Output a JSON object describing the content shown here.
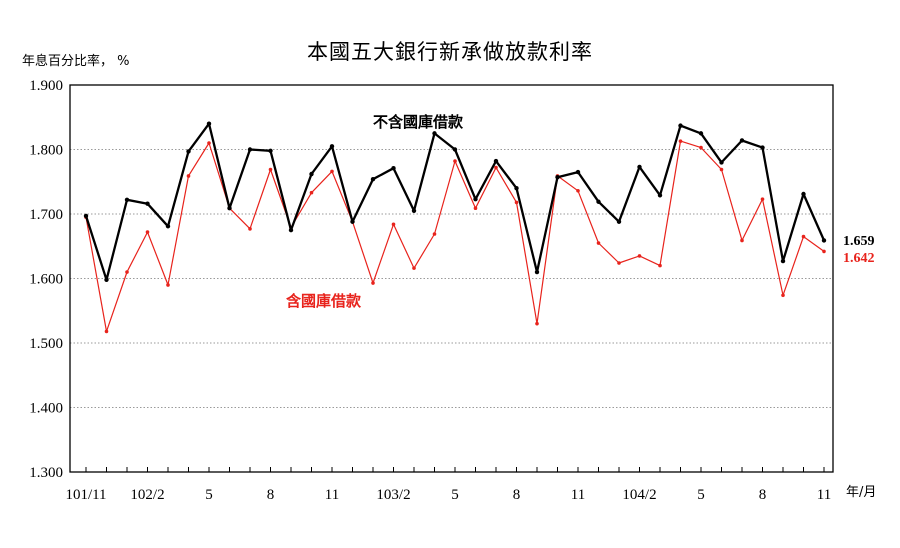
{
  "title": "本國五大銀行新承做放款利率",
  "y_unit_label": "年息百分比率， %",
  "x_unit_label": "年/月",
  "colors": {
    "series_excl": "#000000",
    "series_incl": "#e8231c",
    "grid": "#9a9a9a"
  },
  "chart_data": {
    "type": "line",
    "title": "本國五大銀行新承做放款利率",
    "ylabel": "年息百分比率， %",
    "xlabel": "年/月",
    "ylim": [
      1.3,
      1.9
    ],
    "yticks": [
      "1.300",
      "1.400",
      "1.500",
      "1.600",
      "1.700",
      "1.800",
      "1.900"
    ],
    "grid": "horizontal-dotted",
    "x": [
      "101/11",
      "101/12",
      "102/1",
      "102/2",
      "102/3",
      "102/4",
      "102/5",
      "102/6",
      "102/7",
      "102/8",
      "102/9",
      "102/10",
      "102/11",
      "102/12",
      "103/1",
      "103/2",
      "103/3",
      "103/4",
      "103/5",
      "103/6",
      "103/7",
      "103/8",
      "103/9",
      "103/10",
      "103/11",
      "103/12",
      "104/1",
      "104/2",
      "104/3",
      "104/4",
      "104/5",
      "104/6",
      "104/7",
      "104/8",
      "104/9",
      "104/10",
      "104/11"
    ],
    "xtick_labels": [
      {
        "index": 0,
        "label": "101/11"
      },
      {
        "index": 3,
        "label": "102/2"
      },
      {
        "index": 6,
        "label": "5"
      },
      {
        "index": 9,
        "label": "8"
      },
      {
        "index": 12,
        "label": "11"
      },
      {
        "index": 15,
        "label": "103/2"
      },
      {
        "index": 18,
        "label": "5"
      },
      {
        "index": 21,
        "label": "8"
      },
      {
        "index": 24,
        "label": "11"
      },
      {
        "index": 27,
        "label": "104/2"
      },
      {
        "index": 30,
        "label": "5"
      },
      {
        "index": 33,
        "label": "8"
      },
      {
        "index": 36,
        "label": "11"
      }
    ],
    "series": [
      {
        "name": "不含國庫借款",
        "color": "#000000",
        "end_label": "1.659",
        "values": [
          1.697,
          1.598,
          1.722,
          1.716,
          1.681,
          1.797,
          1.84,
          1.709,
          1.8,
          1.798,
          1.675,
          1.762,
          1.805,
          1.688,
          1.754,
          1.771,
          1.705,
          1.825,
          1.8,
          1.723,
          1.782,
          1.74,
          1.61,
          1.757,
          1.765,
          1.719,
          1.688,
          1.773,
          1.729,
          1.837,
          1.825,
          1.78,
          1.814,
          1.803,
          1.627,
          1.731,
          1.659
        ]
      },
      {
        "name": "含國庫借款",
        "color": "#e8231c",
        "end_label": "1.642",
        "values": [
          1.695,
          1.518,
          1.61,
          1.672,
          1.59,
          1.759,
          1.81,
          1.709,
          1.677,
          1.769,
          1.679,
          1.733,
          1.766,
          1.688,
          1.593,
          1.684,
          1.616,
          1.669,
          1.782,
          1.709,
          1.772,
          1.718,
          1.53,
          1.759,
          1.736,
          1.655,
          1.624,
          1.635,
          1.62,
          1.813,
          1.803,
          1.769,
          1.659,
          1.723,
          1.574,
          1.665,
          1.642
        ]
      }
    ]
  }
}
